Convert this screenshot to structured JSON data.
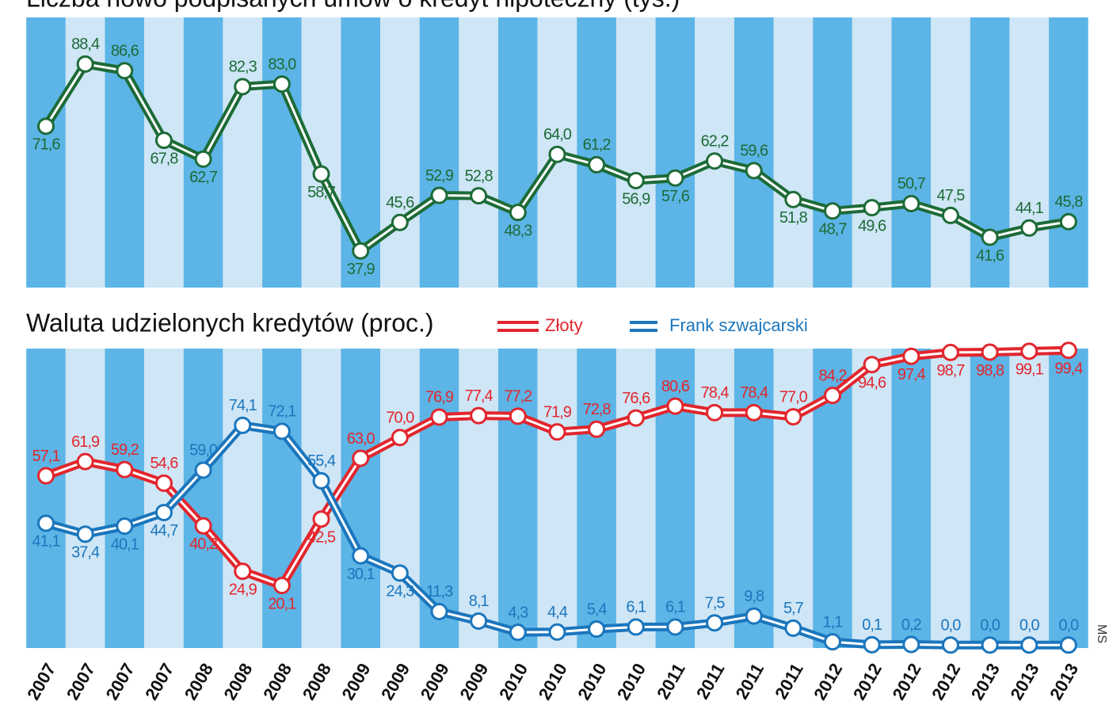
{
  "chart_data": [
    {
      "type": "line",
      "title": "Liczba nowo podpisanych umów o kredyt hipoteczny (tys.)",
      "color": "#1d6b37",
      "values": [
        71.6,
        88.4,
        86.6,
        67.8,
        62.7,
        82.3,
        83.0,
        58.7,
        37.9,
        45.6,
        52.9,
        52.8,
        48.3,
        64.0,
        61.2,
        56.9,
        57.6,
        62.2,
        59.6,
        51.8,
        48.7,
        49.6,
        50.7,
        47.5,
        41.6,
        44.1,
        45.8
      ],
      "value_labels": [
        "71,6",
        "88,4",
        "86,6",
        "67,8",
        "62,7",
        "82,3",
        "83,0",
        "58,7",
        "37,9",
        "45,6",
        "52,9",
        "52,8",
        "48,3",
        "64,0",
        "61,2",
        "56,9",
        "57,6",
        "62,2",
        "59,6",
        "51,8",
        "48,7",
        "49,6",
        "50,7",
        "47,5",
        "41,6",
        "44,1",
        "45,8"
      ],
      "ylim": [
        28,
        101
      ]
    },
    {
      "type": "line",
      "title": "Waluta udzielonych kredytów (proc.)",
      "categories": [
        "2007",
        "2007",
        "2007",
        "2007",
        "2008",
        "2008",
        "2008",
        "2008",
        "2009",
        "2009",
        "2009",
        "2009",
        "2010",
        "2010",
        "2010",
        "2010",
        "2011",
        "2011",
        "2011",
        "2011",
        "2012",
        "2012",
        "2012",
        "2012",
        "2013",
        "2013",
        "2013"
      ],
      "series": [
        {
          "name": "Złoty",
          "color": "#e2262d",
          "values": [
            57.1,
            61.9,
            59.2,
            54.6,
            40.2,
            24.9,
            20.1,
            42.5,
            63.0,
            70.0,
            76.9,
            77.4,
            77.2,
            71.9,
            72.8,
            76.6,
            80.6,
            78.4,
            78.4,
            77.0,
            84.2,
            94.6,
            97.4,
            98.7,
            98.8,
            99.1,
            99.4
          ],
          "value_labels": [
            "57,1",
            "61,9",
            "59,2",
            "54,6",
            "40,2",
            "24,9",
            "20,1",
            "42,5",
            "63,0",
            "70,0",
            "76,9",
            "77,4",
            "77,2",
            "71,9",
            "72,8",
            "76,6",
            "80,6",
            "78,4",
            "78,4",
            "77,0",
            "84,2",
            "94,6",
            "97,4",
            "98,7",
            "98,8",
            "99,1",
            "99,4"
          ]
        },
        {
          "name": "Frank szwajcarski",
          "color": "#1b76bd",
          "values": [
            41.1,
            37.4,
            40.1,
            44.7,
            59.0,
            74.1,
            72.1,
            55.4,
            30.1,
            24.3,
            11.3,
            8.1,
            4.3,
            4.4,
            5.4,
            6.1,
            6.1,
            7.5,
            9.8,
            5.7,
            1.1,
            0.1,
            0.2,
            0.0,
            0.0,
            0.0,
            0.0
          ],
          "value_labels": [
            "41,1",
            "37,4",
            "40,1",
            "44,7",
            "59,0",
            "74,1",
            "72,1",
            "55,4",
            "30,1",
            "24,3",
            "11,3",
            "8,1",
            "4,3",
            "4,4",
            "5,4",
            "6,1",
            "6,1",
            "7,5",
            "9,8",
            "5,7",
            "1,1",
            "0,1",
            "0,2",
            "0,0",
            "0,0",
            "0,0",
            "0,0"
          ]
        }
      ],
      "ylim": [
        -1,
        100
      ],
      "source": "MS"
    }
  ]
}
